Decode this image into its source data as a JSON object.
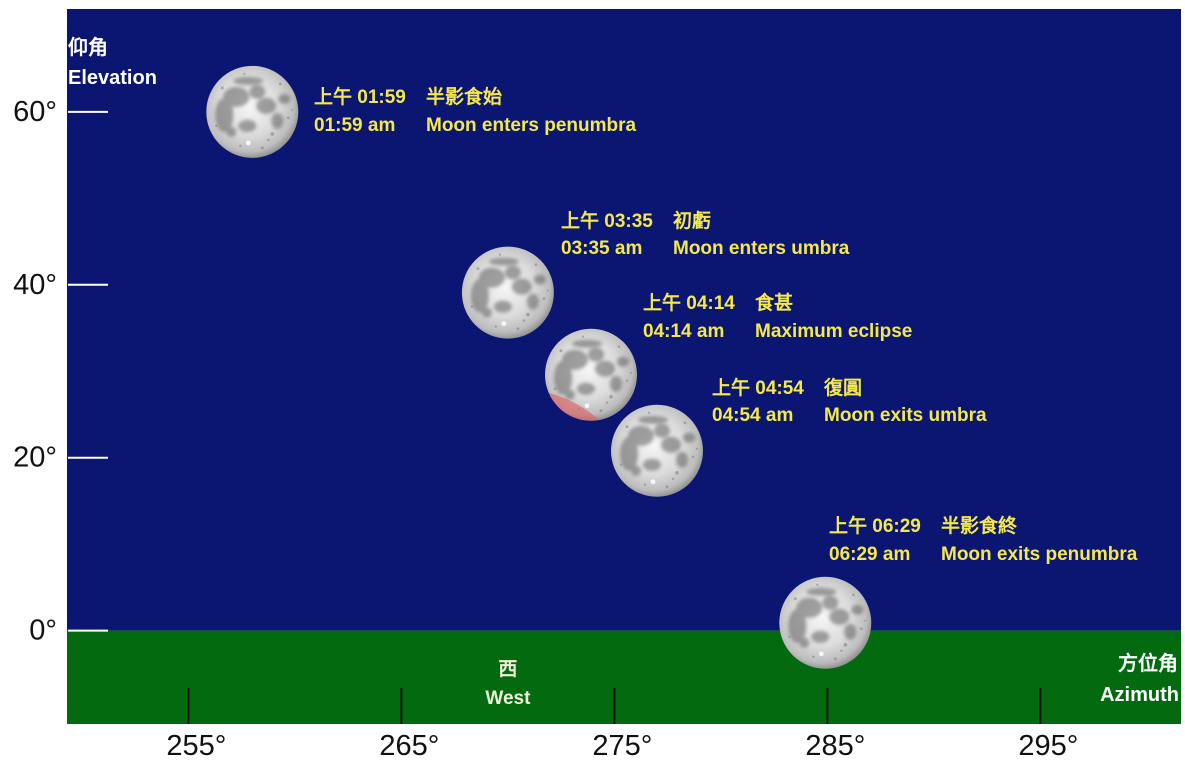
{
  "chart_data": {
    "type": "scatter",
    "xlabel": "Azimuth",
    "xlabel_zh": "方位角",
    "ylabel": "Elevation",
    "ylabel_zh": "仰角",
    "xlim": [
      249.3,
      301.6
    ],
    "ylim": [
      -10.8,
      71.9
    ],
    "x_ticks": [
      255,
      265,
      275,
      285,
      295
    ],
    "x_tick_labels": [
      "255°",
      "265°",
      "275°",
      "285°",
      "295°"
    ],
    "y_ticks": [
      0,
      20,
      40,
      60
    ],
    "y_tick_labels": [
      "0°",
      "20°",
      "40°",
      "60°"
    ],
    "grid": false,
    "horizon_elevation": 0,
    "direction_marker": {
      "label_zh": "西",
      "label_en": "West",
      "azimuth": 270
    },
    "colors": {
      "sky": "#0a1672",
      "ground": "#036a10",
      "event_label": "#f5e84c",
      "direction_label": "#f2efd6",
      "umbral_shadow": "#e05a5a"
    },
    "points": [
      {
        "time_zh": "上午 01:59",
        "event_zh": "半影食始",
        "time_en": "01:59 am",
        "event_en": "Moon enters penumbra",
        "azimuth": 258.0,
        "elevation": 60.0,
        "umbral_shadow": false
      },
      {
        "time_zh": "上午 03:35",
        "event_zh": "初虧",
        "time_en": "03:35 am",
        "event_en": "Moon enters umbra",
        "azimuth": 270.0,
        "elevation": 39.1,
        "umbral_shadow": false
      },
      {
        "time_zh": "上午 04:14",
        "event_zh": "食甚",
        "time_en": "04:14 am",
        "event_en": "Maximum eclipse",
        "azimuth": 273.9,
        "elevation": 29.6,
        "umbral_shadow": true
      },
      {
        "time_zh": "上午 04:54",
        "event_zh": "復圓",
        "time_en": "04:54 am",
        "event_en": "Moon exits umbra",
        "azimuth": 277.0,
        "elevation": 20.8,
        "umbral_shadow": false
      },
      {
        "time_zh": "上午 06:29",
        "event_zh": "半影食終",
        "time_en": "06:29 am",
        "event_en": "Moon exits penumbra",
        "azimuth": 284.9,
        "elevation": 0.9,
        "umbral_shadow": false
      }
    ]
  }
}
